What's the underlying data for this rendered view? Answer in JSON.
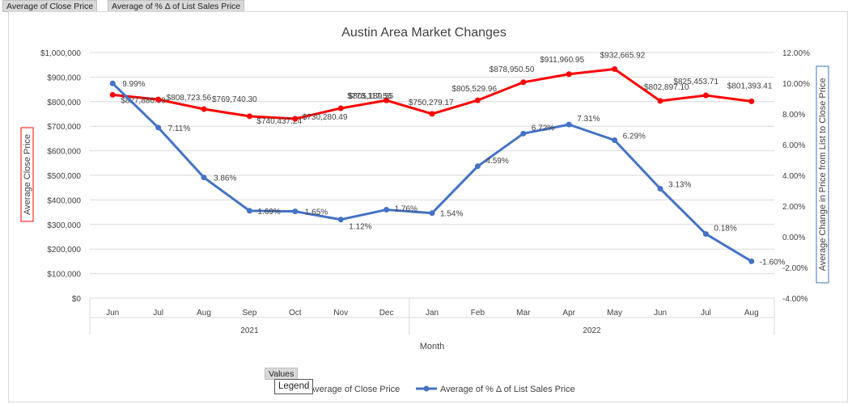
{
  "pivot_buttons": [
    "Average of Close Price",
    "Average of % Δ of List Sales Price"
  ],
  "values_button": "Values",
  "legend_tooltip": "Legend",
  "chart_data": {
    "type": "line",
    "title": "Austin Area Market Changes",
    "xlabel": "Month",
    "ylabel": "Average Close Price",
    "y2label": "Average Change in Price from List to Close Price",
    "categories": [
      "Jun",
      "Jul",
      "Aug",
      "Sep",
      "Oct",
      "Nov",
      "Dec",
      "Jan",
      "Feb",
      "Mar",
      "Apr",
      "May",
      "Jun",
      "Jul",
      "Aug"
    ],
    "groups": [
      {
        "label": "2021",
        "count": 7
      },
      {
        "label": "2022",
        "count": 8
      }
    ],
    "ylim": [
      0,
      1000000
    ],
    "y_ticks": [
      "$0",
      "$100,000",
      "$200,000",
      "$300,000",
      "$400,000",
      "$500,000",
      "$600,000",
      "$700,000",
      "$800,000",
      "$900,000",
      "$1,000,000"
    ],
    "y2lim": [
      -4,
      12
    ],
    "y2_ticks": [
      "-4.00%",
      "-2.00%",
      "0.00%",
      "2.00%",
      "4.00%",
      "6.00%",
      "8.00%",
      "10.00%",
      "12.00%"
    ],
    "series": [
      {
        "name": "Average of Close Price",
        "axis": "left",
        "color": "#ff0000",
        "values": [
          827886.69,
          808723.56,
          769740.3,
          740437.24,
          730280.49,
          773117.56,
          805189.55,
          750279.17,
          805529.96,
          878950.5,
          911960.95,
          932665.92,
          802897.1,
          825453.71,
          801393.41
        ],
        "labels": [
          "$827,886.69",
          "$808,723.56",
          "$769,740.30",
          "$740,437.24",
          "$730,280.49",
          "$773,117.56",
          "$805,189.55",
          "$750,279.17",
          "$805,529.96",
          "$878,950.50",
          "$911,960.95",
          "$932,665.92",
          "$802,897.10",
          "$825,453.71",
          "$801,393.41"
        ]
      },
      {
        "name": "Average of % Δ of List Sales Price",
        "axis": "right",
        "color": "#4472c4",
        "values": [
          9.99,
          7.11,
          3.86,
          1.69,
          1.65,
          1.12,
          1.76,
          1.54,
          4.59,
          6.72,
          7.31,
          6.29,
          3.13,
          0.18,
          -1.6
        ],
        "labels": [
          "9.99%",
          "7.11%",
          "3.86%",
          "1.69%",
          "1.65%",
          "1.12%",
          "1.76%",
          "1.54%",
          "4.59%",
          "6.72%",
          "7.31%",
          "6.29%",
          "3.13%",
          "0.18%",
          "-1.60%"
        ]
      }
    ],
    "legend": [
      {
        "label": "Average of Close Price",
        "color": "#ff0000"
      },
      {
        "label": "Average of % Δ of List Sales Price",
        "color": "#4472c4"
      }
    ]
  }
}
